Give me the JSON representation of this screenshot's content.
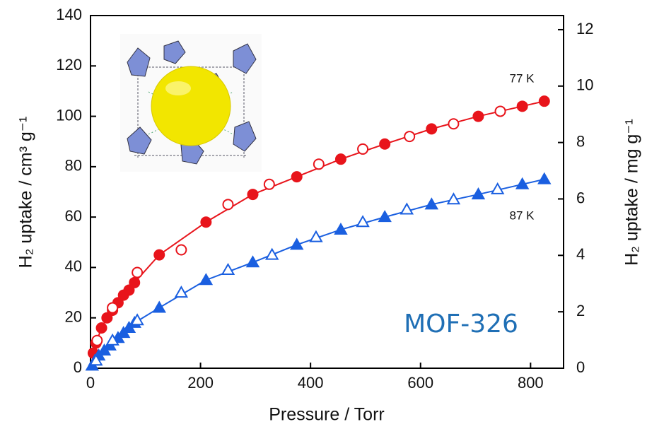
{
  "chart_data": {
    "type": "scatter",
    "xlabel": "Pressure / Torr",
    "ylabel": "H₂ uptake / cm³ g⁻¹",
    "y2label": "H₂ uptake / mg g⁻¹",
    "xlim": [
      0,
      860
    ],
    "xticks": [
      0,
      200,
      400,
      600,
      800
    ],
    "ylim": [
      0,
      140
    ],
    "yticks": [
      0,
      20,
      40,
      60,
      80,
      100,
      120,
      140
    ],
    "y2lim": [
      0,
      12.5
    ],
    "y2ticks": [
      0,
      2,
      4,
      6,
      8,
      10,
      12
    ],
    "annotations": [
      "77 K",
      "87 K",
      "MOF-326"
    ],
    "series": [
      {
        "name": "77 K",
        "color": "#e8141b",
        "marker": "circle",
        "filled": true,
        "x": [
          5,
          10,
          20,
          30,
          40,
          50,
          60,
          70,
          80,
          125,
          210,
          295,
          375,
          455,
          535,
          620,
          705,
          785,
          825
        ],
        "values": [
          6,
          10,
          16,
          20,
          23,
          26,
          29,
          31,
          34,
          45,
          58,
          69,
          76,
          83,
          89,
          95,
          100,
          104,
          106
        ]
      },
      {
        "color": "#e8141b",
        "marker": "circle",
        "filled": false,
        "x": [
          12,
          40,
          85,
          165,
          250,
          325,
          415,
          495,
          580,
          660,
          745
        ],
        "values": [
          11,
          24,
          38,
          47,
          65,
          73,
          81,
          87,
          92,
          97,
          102
        ]
      },
      {
        "name": "87 K",
        "color": "#1a5fe0",
        "marker": "triangle",
        "filled": true,
        "x": [
          3,
          8,
          15,
          25,
          35,
          50,
          60,
          70,
          80,
          125,
          210,
          295,
          375,
          455,
          535,
          620,
          705,
          785,
          825
        ],
        "values": [
          1,
          3,
          5,
          7,
          9,
          12,
          14,
          16,
          18,
          24,
          35,
          42,
          49,
          55,
          60,
          65,
          69,
          73,
          75
        ]
      },
      {
        "color": "#1a5fe0",
        "marker": "triangle",
        "filled": false,
        "x": [
          10,
          40,
          85,
          165,
          250,
          330,
          410,
          495,
          575,
          660,
          740
        ],
        "values": [
          3,
          11,
          19,
          30,
          39,
          45,
          52,
          58,
          63,
          67,
          71
        ]
      }
    ]
  }
}
